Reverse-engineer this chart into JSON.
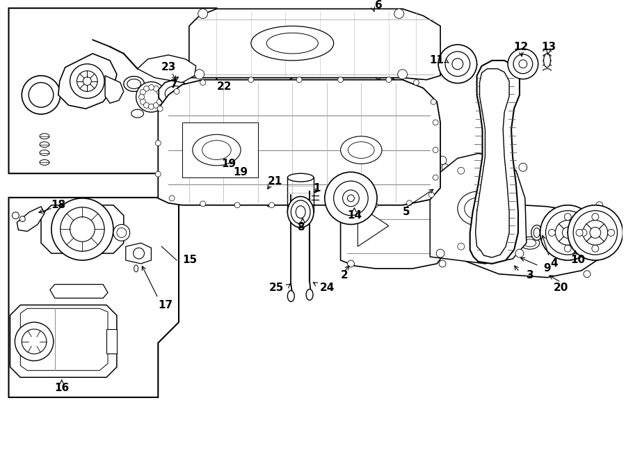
{
  "bg": "#ffffff",
  "lc": "#000000",
  "fig_w": 9.0,
  "fig_h": 6.61,
  "dpi": 100,
  "xlim": [
    0,
    900
  ],
  "ylim": [
    0,
    661
  ]
}
